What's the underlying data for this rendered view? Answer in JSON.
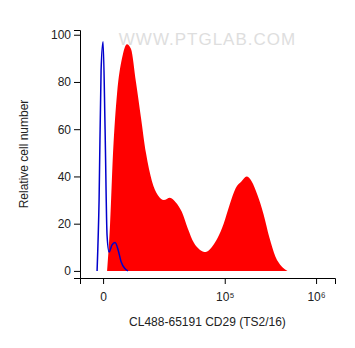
{
  "chart_data": {
    "type": "line",
    "x_label": "CL488-65191 CD29 (TS2/16)",
    "y_label": "Relative cell number",
    "annotation": "WWW.PTGLAB.COM",
    "log": "x",
    "xlim": [
      -4000,
      1600000
    ],
    "xticks": [
      0,
      {
        "value": 100000,
        "label": "10⁵"
      },
      {
        "value": 1000000,
        "label": "10⁶"
      }
    ],
    "ylim": [
      -3,
      102
    ],
    "yticks": [
      0,
      20,
      40,
      60,
      80,
      100
    ],
    "series": [
      {
        "type": "area",
        "color": "#ff0000",
        "x": [
          540,
          980,
          1450,
          2140,
          3100,
          4190,
          5170,
          6520,
          8060,
          9800,
          12200,
          14950,
          18150,
          21900,
          26200,
          31200,
          37000,
          43700,
          51500,
          60500,
          71000,
          83200,
          97200,
          113500,
          132500,
          154400,
          175200,
          199000,
          231400,
          269300,
          312500,
          363400,
          422300,
          490400
        ],
        "values": [
          0,
          20,
          50,
          75,
          90,
          96,
          94,
          80,
          65,
          50,
          38,
          32,
          30,
          31,
          29,
          25,
          18,
          12,
          9,
          8,
          10,
          14,
          20,
          28,
          35,
          38,
          40,
          38,
          32,
          24,
          14,
          6,
          2,
          0
        ]
      },
      {
        "type": "line",
        "color": "#0000cc",
        "x": [
          -830,
          -540,
          -263,
          0,
          263,
          538,
          828,
          1290,
          1790,
          2330,
          2900,
          3700,
          4410
        ],
        "values": [
          0,
          30,
          85,
          97,
          60,
          15,
          8,
          11,
          12,
          9,
          4,
          1,
          0
        ]
      }
    ]
  }
}
